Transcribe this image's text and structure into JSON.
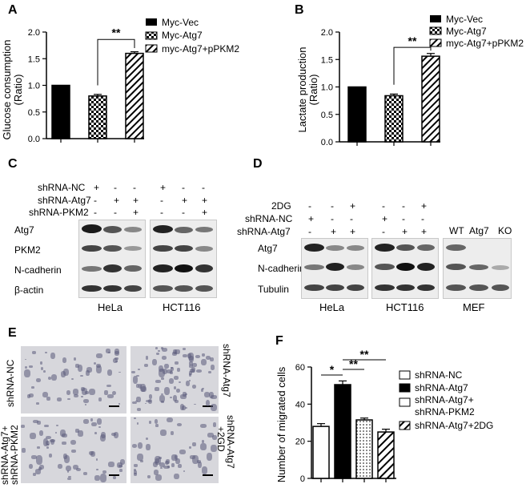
{
  "panels": {
    "A": {
      "letter": "A",
      "chart_data": {
        "type": "bar",
        "categories": [
          "Myc-Vec",
          "Myc-Atg7",
          "myc-Atg7+pPKM2"
        ],
        "values": [
          1.0,
          0.8,
          1.6
        ],
        "errors": [
          0.0,
          0.03,
          0.03
        ],
        "ylabel_line1": "Glucose consumption",
        "ylabel_line2": "(Ratio)",
        "ylim": [
          0,
          2.0
        ],
        "yticks": [
          "0.0",
          "0.5",
          "1.0",
          "1.5",
          "2.0"
        ],
        "significance": "**",
        "legend": [
          "Myc-Vec",
          "Myc-Atg7",
          "myc-Atg7+pPKM2"
        ],
        "colors": [
          "#000000",
          "checker",
          "hatch"
        ]
      }
    },
    "B": {
      "letter": "B",
      "chart_data": {
        "type": "bar",
        "categories": [
          "Myc-Vec",
          "Myc-Atg7",
          "myc-Atg7+pPKM2"
        ],
        "values": [
          1.0,
          0.84,
          1.56
        ],
        "errors": [
          0.0,
          0.03,
          0.05
        ],
        "ylabel_line1": "Lactate production",
        "ylabel_line2": "(Ratio)",
        "ylim": [
          0,
          2.0
        ],
        "yticks": [
          "0.0",
          "0.5",
          "1.0",
          "1.5",
          "2.0"
        ],
        "significance": "**",
        "legend": [
          "Myc-Vec",
          "Myc-Atg7",
          "myc-Atg7+pPKM2"
        ],
        "colors": [
          "#000000",
          "checker",
          "hatch"
        ]
      }
    },
    "C": {
      "letter": "C",
      "conditions": [
        {
          "label": "shRNA-NC",
          "signs": [
            "+",
            "-",
            "-",
            "+",
            "-",
            "-"
          ]
        },
        {
          "label": "shRNA-Atg7",
          "signs": [
            "-",
            "+",
            "+",
            "-",
            "+",
            "+"
          ]
        },
        {
          "label": "shRNA-PKM2",
          "signs": [
            "-",
            "-",
            "+",
            "-",
            "-",
            "+"
          ]
        }
      ],
      "bands": [
        "Atg7",
        "PKM2",
        "N-cadherin",
        "β-actin"
      ],
      "cells": [
        "HeLa",
        "HCT116"
      ]
    },
    "D": {
      "letter": "D",
      "conditions": [
        {
          "label": "2DG",
          "signs": [
            "-",
            "-",
            "+",
            "-",
            "-",
            "+"
          ]
        },
        {
          "label": "shRNA-NC",
          "signs": [
            "+",
            "-",
            "-",
            "+",
            "-",
            "-"
          ]
        },
        {
          "label": "shRNA-Atg7",
          "signs": [
            "-",
            "+",
            "+",
            "-",
            "+",
            "+"
          ]
        }
      ],
      "mef_labels": [
        "WT",
        "Atg7",
        "KO"
      ],
      "bands": [
        "Atg7",
        "N-cadherin",
        "Tubulin"
      ],
      "cells": [
        "HeLa",
        "HCT116",
        "MEF"
      ]
    },
    "E": {
      "letter": "E",
      "labels": [
        "shRNA-NC",
        "shRNA-Atg7",
        "shRNA-Atg7+",
        "shRNA-PKM2",
        "shRNA-Atg7",
        "+2GD"
      ]
    },
    "F": {
      "letter": "F",
      "chart_data": {
        "type": "bar",
        "categories": [
          "shRNA-NC",
          "shRNA-Atg7",
          "shRNA-Atg7+ shRNA-PKM2",
          "shRNA-Atg7+2DG"
        ],
        "values": [
          28,
          50.5,
          31.5,
          25
        ],
        "errors": [
          1.5,
          2,
          1,
          1.5
        ],
        "ylabel": "Number of migrated cells",
        "ylim": [
          0,
          60
        ],
        "yticks": [
          "0",
          "20",
          "40",
          "60"
        ],
        "significance": [
          "*",
          "**",
          "**"
        ],
        "legend": [
          "shRNA-NC",
          "shRNA-Atg7",
          "shRNA-Atg7+",
          "shRNA-PKM2",
          "shRNA-Atg7+2DG"
        ],
        "colors": [
          "#ffffff",
          "#000000",
          "dots",
          "hatch"
        ]
      }
    }
  }
}
